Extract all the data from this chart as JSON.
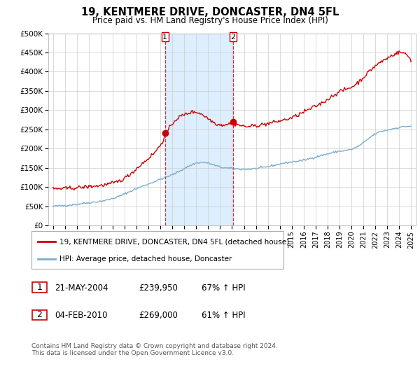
{
  "title": "19, KENTMERE DRIVE, DONCASTER, DN4 5FL",
  "subtitle": "Price paid vs. HM Land Registry's House Price Index (HPI)",
  "ylabel_ticks": [
    "£0",
    "£50K",
    "£100K",
    "£150K",
    "£200K",
    "£250K",
    "£300K",
    "£350K",
    "£400K",
    "£450K",
    "£500K"
  ],
  "ytick_values": [
    0,
    50000,
    100000,
    150000,
    200000,
    250000,
    300000,
    350000,
    400000,
    450000,
    500000
  ],
  "ylim": [
    0,
    500000
  ],
  "xlim_start": 1994.6,
  "xlim_end": 2025.4,
  "sale1": {
    "year": 2004.38,
    "price": 239950,
    "label": "1"
  },
  "sale2": {
    "year": 2010.09,
    "price": 269000,
    "label": "2"
  },
  "legend_line1": "19, KENTMERE DRIVE, DONCASTER, DN4 5FL (detached house)",
  "legend_line2": "HPI: Average price, detached house, Doncaster",
  "table_row1": [
    "1",
    "21-MAY-2004",
    "£239,950",
    "67% ↑ HPI"
  ],
  "table_row2": [
    "2",
    "04-FEB-2010",
    "£269,000",
    "61% ↑ HPI"
  ],
  "footer": "Contains HM Land Registry data © Crown copyright and database right 2024.\nThis data is licensed under the Open Government Licence v3.0.",
  "red_color": "#cc0000",
  "blue_color": "#7aadcf",
  "shade_color": "#ddeeff",
  "grid_color": "#cccccc",
  "bg_color": "#ffffff"
}
